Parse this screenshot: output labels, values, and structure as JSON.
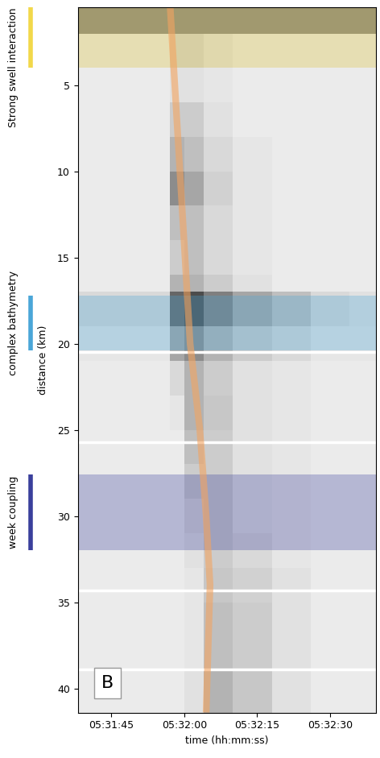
{
  "chart_data": {
    "type": "heatmap",
    "x_label": "time (hh:mm:ss)",
    "y_label": "distance (km)",
    "xlim": [
      19898.1,
      19959.5
    ],
    "ylim": [
      41.4,
      0.5
    ],
    "xticks": [
      {
        "value": 19905,
        "label": "05:31:45"
      },
      {
        "value": 19920,
        "label": "05:32:00"
      },
      {
        "value": 19935,
        "label": "05:32:15"
      },
      {
        "value": 19950,
        "label": "05:32:30"
      }
    ],
    "yticks": [
      5,
      10,
      15,
      20,
      25,
      30,
      35,
      40
    ],
    "panel_label": "B",
    "image": {
      "x_edges": [
        19898.1,
        19905,
        19912,
        19917,
        19920,
        19924,
        19930,
        19938,
        19946,
        19954,
        19959.5
      ],
      "y_edges": [
        0.5,
        2,
        4,
        6,
        8,
        10,
        12,
        14,
        16,
        17,
        19,
        21,
        23,
        25,
        27,
        29,
        31,
        33,
        35,
        37,
        39,
        41.4
      ],
      "color_range": [
        0,
        1
      ],
      "cells": [
        [
          0.5,
          0.5,
          0.5,
          0.5,
          0.5,
          0.5,
          0.5,
          0.5,
          0.5,
          0.5
        ],
        [
          0.12,
          0.12,
          0.12,
          0.2,
          0.2,
          0.15,
          0.12,
          0.12,
          0.12,
          0.12
        ],
        [
          0.08,
          0.08,
          0.08,
          0.12,
          0.12,
          0.1,
          0.08,
          0.08,
          0.08,
          0.08
        ],
        [
          0.08,
          0.08,
          0.08,
          0.2,
          0.2,
          0.12,
          0.08,
          0.08,
          0.08,
          0.08
        ],
        [
          0.08,
          0.08,
          0.08,
          0.3,
          0.25,
          0.15,
          0.1,
          0.08,
          0.08,
          0.08
        ],
        [
          0.08,
          0.08,
          0.08,
          0.45,
          0.35,
          0.18,
          0.1,
          0.08,
          0.08,
          0.08
        ],
        [
          0.08,
          0.08,
          0.08,
          0.25,
          0.25,
          0.15,
          0.1,
          0.08,
          0.08,
          0.08
        ],
        [
          0.08,
          0.08,
          0.08,
          0.2,
          0.25,
          0.15,
          0.1,
          0.08,
          0.08,
          0.08
        ],
        [
          0.08,
          0.08,
          0.08,
          0.3,
          0.3,
          0.2,
          0.12,
          0.08,
          0.08,
          0.08
        ],
        [
          0.15,
          0.15,
          0.15,
          0.6,
          0.7,
          0.5,
          0.35,
          0.25,
          0.15,
          0.12
        ],
        [
          0.1,
          0.1,
          0.1,
          0.35,
          0.45,
          0.3,
          0.2,
          0.15,
          0.1,
          0.1
        ],
        [
          0.08,
          0.08,
          0.08,
          0.15,
          0.3,
          0.2,
          0.12,
          0.1,
          0.08,
          0.08
        ],
        [
          0.08,
          0.08,
          0.08,
          0.1,
          0.3,
          0.22,
          0.12,
          0.1,
          0.08,
          0.08
        ],
        [
          0.08,
          0.08,
          0.08,
          0.08,
          0.25,
          0.2,
          0.12,
          0.1,
          0.08,
          0.08
        ],
        [
          0.08,
          0.08,
          0.08,
          0.08,
          0.2,
          0.2,
          0.12,
          0.1,
          0.08,
          0.08
        ],
        [
          0.08,
          0.08,
          0.08,
          0.08,
          0.15,
          0.2,
          0.12,
          0.1,
          0.08,
          0.08
        ],
        [
          0.08,
          0.08,
          0.08,
          0.08,
          0.12,
          0.2,
          0.15,
          0.1,
          0.08,
          0.08
        ],
        [
          0.08,
          0.08,
          0.08,
          0.08,
          0.1,
          0.22,
          0.18,
          0.12,
          0.08,
          0.08
        ],
        [
          0.08,
          0.08,
          0.08,
          0.08,
          0.1,
          0.25,
          0.2,
          0.12,
          0.08,
          0.08
        ],
        [
          0.08,
          0.08,
          0.08,
          0.08,
          0.1,
          0.25,
          0.2,
          0.12,
          0.08,
          0.08
        ],
        [
          0.08,
          0.08,
          0.08,
          0.08,
          0.12,
          0.3,
          0.22,
          0.12,
          0.08,
          0.08
        ]
      ]
    },
    "front_line": {
      "x": [
        19917.1,
        19919.1,
        19921.2,
        19923.2,
        19924.5,
        19925.3,
        19924.5
      ],
      "y": [
        0.5,
        10,
        20,
        25,
        30,
        34,
        41.4
      ],
      "color": "#f4a460"
    },
    "bands": [
      {
        "label": "Strong swell interaction",
        "range": [
          0.5,
          4.0
        ],
        "color": "#f2d84a"
      },
      {
        "label": "complex bathymetry",
        "range": [
          17.2,
          20.4
        ],
        "color": "#4aa6d8"
      },
      {
        "label": "week coupling",
        "range": [
          27.6,
          32.0
        ],
        "color": "#3a3f9c"
      }
    ],
    "gaps": [
      20.5,
      25.7,
      34.3,
      38.9
    ]
  }
}
